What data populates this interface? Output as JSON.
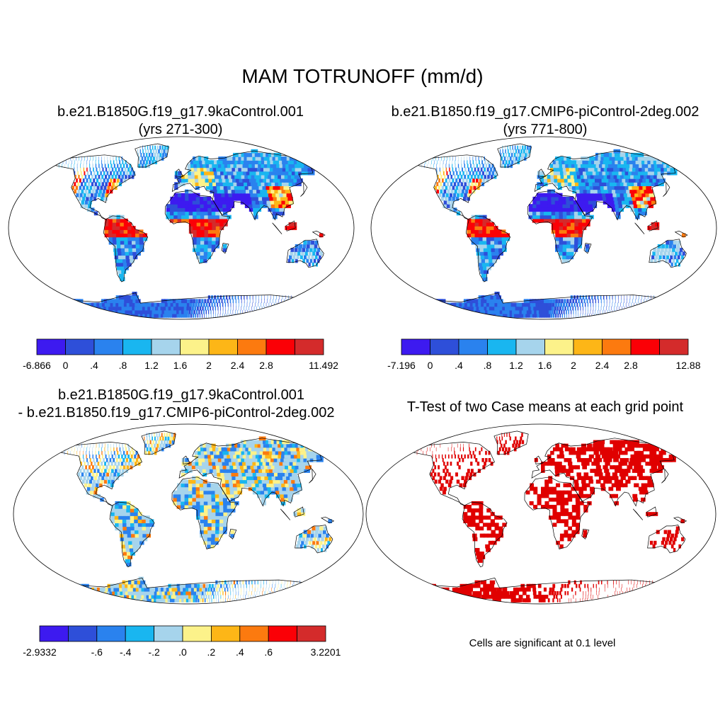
{
  "title": "MAM TOTRUNOFF (mm/d)",
  "panels": [
    {
      "title_line1": "b.e21.B1850G.f19_g17.9kaControl.001",
      "title_line2": "(yrs 271-300)"
    },
    {
      "title_line1": "b.e21.B1850.f19_g17.CMIP6-piControl-2deg.002",
      "title_line2": "(yrs 771-800)"
    },
    {
      "title_line1": "b.e21.B1850G.f19_g17.9kaControl.001",
      "title_line2": "- b.e21.B1850.f19_g17.CMIP6-piControl-2deg.002"
    },
    {
      "title_line1": "T-Test of two Case means at each grid point",
      "note": "Cells are significant at 0.1 level"
    }
  ],
  "colorbars": [
    {
      "colors": [
        "#3d1af0",
        "#2e4fd9",
        "#2a82ee",
        "#19b6f0",
        "#a6d4ec",
        "#fcf28a",
        "#fdb617",
        "#fc7a0f",
        "#fb0006",
        "#d42b2b"
      ],
      "labels": [
        "-6.866",
        "0",
        ".4",
        ".8",
        "1.2",
        "1.6",
        "2",
        "2.4",
        "2.8",
        "11.492"
      ]
    },
    {
      "colors": [
        "#3d1af0",
        "#2e4fd9",
        "#2a82ee",
        "#19b6f0",
        "#a6d4ec",
        "#fcf28a",
        "#fdb617",
        "#fc7a0f",
        "#fb0006",
        "#d42b2b"
      ],
      "labels": [
        "-7.196",
        "0",
        ".4",
        ".8",
        "1.2",
        "1.6",
        "2",
        "2.4",
        "2.8",
        "12.88"
      ]
    },
    {
      "colors": [
        "#3d1af0",
        "#2e4fd9",
        "#2a82ee",
        "#19b6f0",
        "#a6d4ec",
        "#fcf28a",
        "#fdb617",
        "#fc7a0f",
        "#fb0006",
        "#d42b2b"
      ],
      "labels": [
        "-2.9332",
        "-.6",
        "-.4",
        "-.2",
        ".0",
        ".2",
        ".4",
        ".6",
        "3.2201"
      ]
    }
  ],
  "significance_color": "#e00000"
}
